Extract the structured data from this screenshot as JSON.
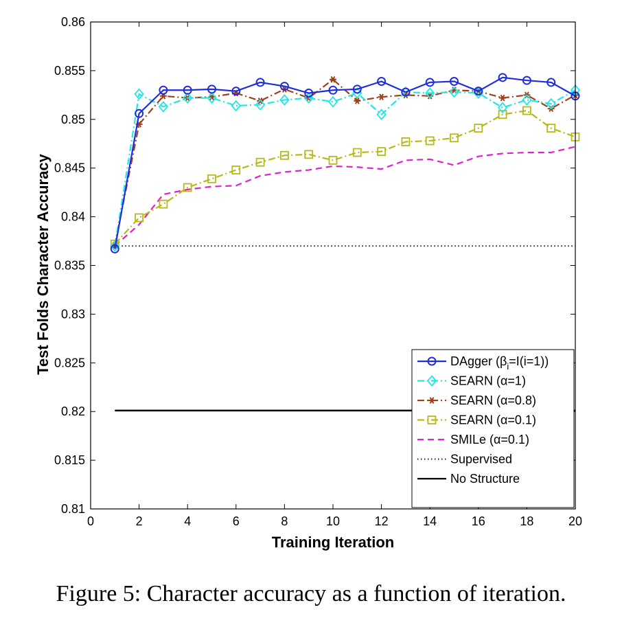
{
  "caption": "Figure 5: Character accuracy as a function of iteration.",
  "chart_data": {
    "type": "line",
    "xlabel": "Training Iteration",
    "ylabel": "Test Folds Character Accuracy",
    "xlim": [
      0,
      20
    ],
    "ylim": [
      0.81,
      0.86
    ],
    "xticks": [
      "0",
      "2",
      "4",
      "6",
      "8",
      "10",
      "12",
      "14",
      "16",
      "18",
      "20"
    ],
    "yticks": [
      "0.81",
      "0.815",
      "0.82",
      "0.825",
      "0.83",
      "0.835",
      "0.84",
      "0.845",
      "0.85",
      "0.855",
      "0.86"
    ],
    "grid": false,
    "legend_position": "bottom-right",
    "x": [
      1,
      2,
      3,
      4,
      5,
      6,
      7,
      8,
      9,
      10,
      11,
      12,
      13,
      14,
      15,
      16,
      17,
      18,
      19,
      20
    ],
    "series": [
      {
        "name": "DAgger (β_i=I(i=1))",
        "legend_main": "DAgger (β",
        "legend_sub": "i",
        "legend_tail": "=I(i=1))",
        "color": "#1f2ddb",
        "dash": "solid",
        "marker": "circle",
        "values": [
          0.8367,
          0.8506,
          0.853,
          0.853,
          0.8531,
          0.8529,
          0.8538,
          0.8534,
          0.8527,
          0.853,
          0.8531,
          0.8539,
          0.8528,
          0.8538,
          0.8539,
          0.8529,
          0.8543,
          0.854,
          0.8538,
          0.8524
        ]
      },
      {
        "name": "SEARN (α=1)",
        "color": "#22e5e5",
        "dash": "dashdot",
        "marker": "diamond",
        "values": [
          0.837,
          0.8526,
          0.8513,
          0.8522,
          0.8522,
          0.8514,
          0.8515,
          0.852,
          0.8522,
          0.8518,
          0.8527,
          0.8505,
          0.8528,
          0.8527,
          0.8528,
          0.8527,
          0.8512,
          0.852,
          0.8516,
          0.853
        ]
      },
      {
        "name": "SEARN (α=0.8)",
        "color": "#a0401a",
        "dash": "dashdot",
        "marker": "asterisk",
        "values": [
          0.8371,
          0.8495,
          0.8524,
          0.8522,
          0.8523,
          0.8527,
          0.8519,
          0.8531,
          0.8522,
          0.8541,
          0.8519,
          0.8523,
          0.8525,
          0.8524,
          0.853,
          0.8529,
          0.8522,
          0.8525,
          0.8511,
          0.8525
        ]
      },
      {
        "name": "SEARN (α=0.1)",
        "color": "#b8b818",
        "dash": "dashdot",
        "marker": "square",
        "values": [
          0.8372,
          0.8399,
          0.8413,
          0.843,
          0.8439,
          0.8448,
          0.8456,
          0.8463,
          0.8464,
          0.8458,
          0.8466,
          0.8467,
          0.8477,
          0.8478,
          0.8481,
          0.8491,
          0.8505,
          0.8509,
          0.8491,
          0.8482
        ]
      },
      {
        "name": "SMILe (α=0.1)",
        "color": "#dd22cc",
        "dash": "dashed",
        "marker": "none",
        "values": [
          0.837,
          0.8392,
          0.8423,
          0.8428,
          0.8431,
          0.8432,
          0.8442,
          0.8446,
          0.8448,
          0.8452,
          0.8451,
          0.8449,
          0.8458,
          0.8459,
          0.8453,
          0.8462,
          0.8465,
          0.8466,
          0.8466,
          0.8472
        ]
      },
      {
        "name": "Supervised",
        "color": "#333333",
        "dash": "dotted",
        "marker": "none",
        "x": [
          1,
          20
        ],
        "values": [
          0.837,
          0.837
        ]
      },
      {
        "name": "No Structure",
        "color": "#000000",
        "dash": "solid",
        "marker": "none",
        "x": [
          1,
          20
        ],
        "values": [
          0.8201,
          0.8201
        ]
      }
    ]
  }
}
